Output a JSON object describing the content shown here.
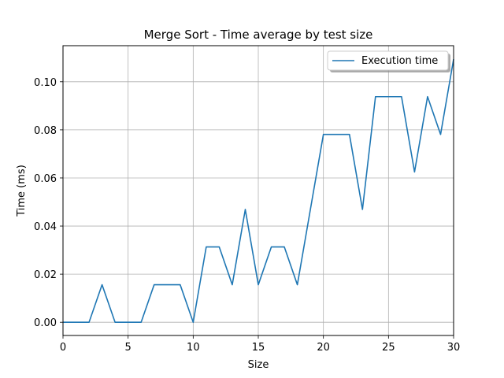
{
  "chart_data": {
    "type": "line",
    "title": "Merge Sort - Time average by test size",
    "xlabel": "Size",
    "ylabel": "Time (ms)",
    "xlim": [
      0,
      30
    ],
    "ylim": [
      -0.0055,
      0.115
    ],
    "xticks": [
      0,
      5,
      10,
      15,
      20,
      25,
      30
    ],
    "yticks": [
      0.0,
      0.02,
      0.04,
      0.06,
      0.08,
      0.1
    ],
    "xtick_labels": [
      "0",
      "5",
      "10",
      "15",
      "20",
      "25",
      "30"
    ],
    "ytick_labels": [
      "0.00",
      "0.02",
      "0.04",
      "0.06",
      "0.08",
      "0.10"
    ],
    "grid": true,
    "legend_position": "top-right",
    "series_color": "#1f77b4",
    "series": [
      {
        "name": "Execution time",
        "x": [
          0,
          1,
          2,
          3,
          4,
          5,
          6,
          7,
          8,
          9,
          10,
          11,
          12,
          13,
          14,
          15,
          16,
          17,
          18,
          19,
          20,
          21,
          22,
          23,
          24,
          25,
          26,
          27,
          28,
          29,
          30
        ],
        "values": [
          0.0,
          0.0,
          0.0,
          0.0156,
          0.0,
          0.0,
          0.0,
          0.0156,
          0.0156,
          0.0156,
          0.0,
          0.0313,
          0.0313,
          0.0156,
          0.0469,
          0.0156,
          0.0313,
          0.0313,
          0.0156,
          0.0469,
          0.0781,
          0.0781,
          0.0781,
          0.0469,
          0.0938,
          0.0938,
          0.0938,
          0.0625,
          0.0938,
          0.0781,
          0.1094
        ]
      }
    ]
  }
}
